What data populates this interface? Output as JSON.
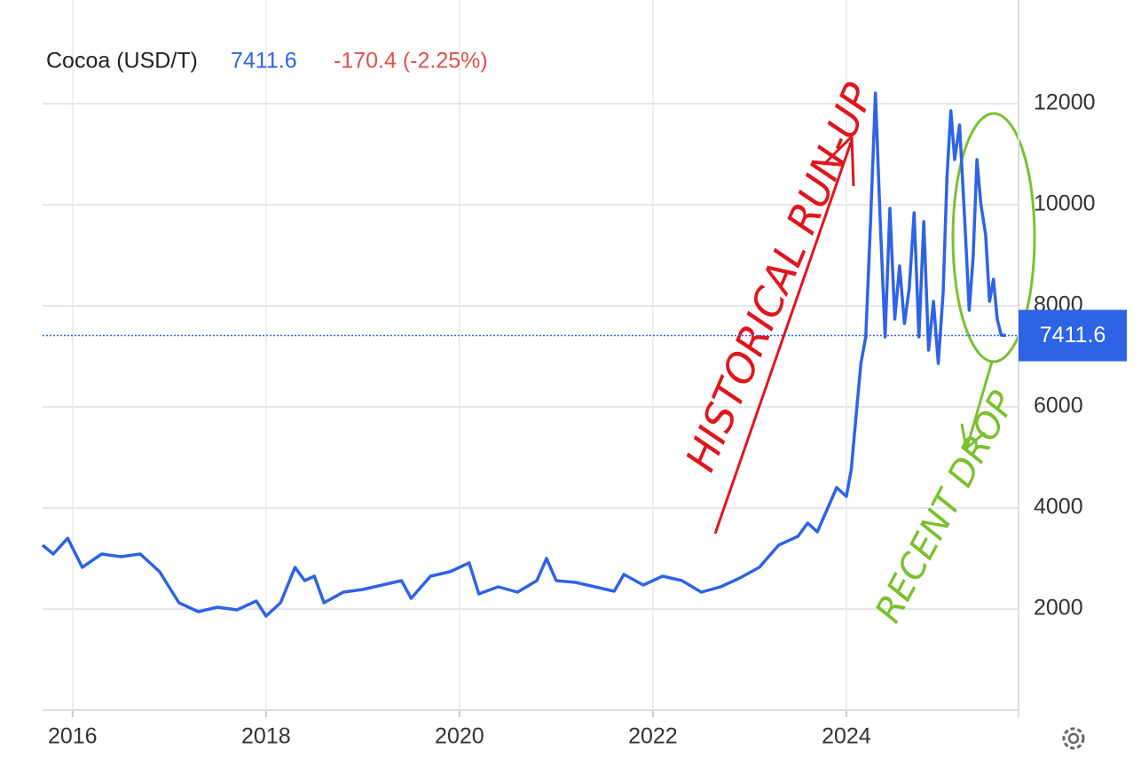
{
  "chart_data": {
    "type": "line",
    "title": "Cocoa (USD/T)",
    "last_value": 7411.6,
    "change": "-170.4 (-2.25%)",
    "annotations": [
      "HISTORICAL RUN-UP",
      "RECENT DROP"
    ],
    "xlim": [
      2015.69,
      2025.78
    ],
    "xticks": [
      2016,
      2018,
      2020,
      2022,
      2024
    ],
    "ylim": [
      0,
      13500
    ],
    "yticks": [
      2000,
      4000,
      6000,
      8000,
      10000,
      12000
    ],
    "grid": true,
    "series": [
      {
        "name": "Cocoa (USD/T)",
        "color": "#2f63e6",
        "x": [
          2015.69,
          2015.8,
          2015.95,
          2016.1,
          2016.3,
          2016.5,
          2016.7,
          2016.9,
          2017.1,
          2017.3,
          2017.5,
          2017.7,
          2017.9,
          2018.0,
          2018.15,
          2018.3,
          2018.4,
          2018.5,
          2018.6,
          2018.8,
          2019.0,
          2019.2,
          2019.4,
          2019.5,
          2019.7,
          2019.9,
          2020.1,
          2020.2,
          2020.4,
          2020.6,
          2020.8,
          2020.9,
          2021.0,
          2021.2,
          2021.4,
          2021.6,
          2021.7,
          2021.9,
          2022.1,
          2022.3,
          2022.5,
          2022.7,
          2022.9,
          2023.1,
          2023.3,
          2023.5,
          2023.6,
          2023.7,
          2023.8,
          2023.9,
          2024.0,
          2024.05,
          2024.1,
          2024.15,
          2024.2,
          2024.25,
          2024.3,
          2024.35,
          2024.4,
          2024.45,
          2024.5,
          2024.55,
          2024.6,
          2024.65,
          2024.7,
          2024.75,
          2024.8,
          2024.85,
          2024.9,
          2024.95,
          2025.0,
          2025.04,
          2025.08,
          2025.12,
          2025.17,
          2025.22,
          2025.27,
          2025.31,
          2025.35,
          2025.39,
          2025.44,
          2025.48,
          2025.52,
          2025.56,
          2025.6,
          2025.65
        ],
        "values": [
          3263,
          3088,
          3400,
          2825,
          3088,
          3035,
          3088,
          2737,
          2123,
          1947,
          2035,
          1982,
          2158,
          1860,
          2123,
          2825,
          2561,
          2649,
          2123,
          2333,
          2386,
          2474,
          2561,
          2210,
          2649,
          2737,
          2912,
          2298,
          2439,
          2333,
          2561,
          3000,
          2561,
          2526,
          2439,
          2351,
          2684,
          2474,
          2649,
          2561,
          2333,
          2439,
          2614,
          2825,
          3263,
          3439,
          3702,
          3526,
          3965,
          4404,
          4228,
          4754,
          5807,
          6860,
          7386,
          9667,
          12211,
          9667,
          7386,
          9930,
          7737,
          8789,
          7649,
          8351,
          9842,
          7386,
          9667,
          7123,
          8088,
          6860,
          8263,
          10544,
          11860,
          10895,
          11579,
          9842,
          7912,
          8965,
          10895,
          10018,
          9404,
          8088,
          8526,
          7737,
          7421,
          7411.6
        ]
      }
    ]
  }
}
